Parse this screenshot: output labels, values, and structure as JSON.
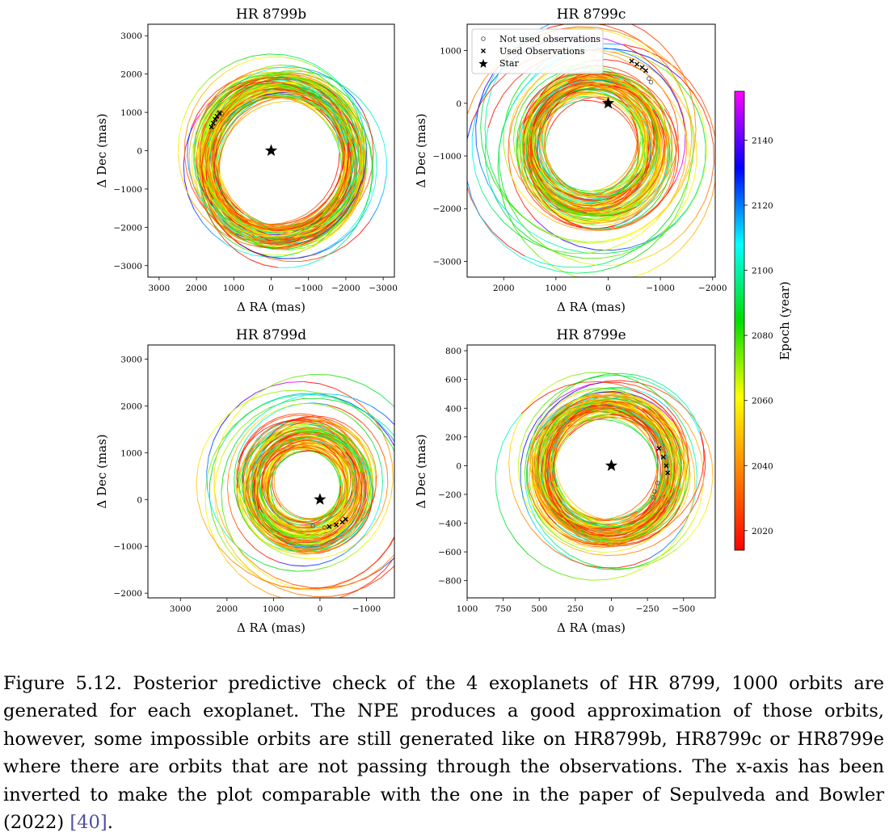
{
  "chart_data": [
    {
      "type": "line",
      "title": "HR 8799b",
      "xlabel": "Δ RA (mas)",
      "ylabel": "Δ Dec (mas)",
      "xlim": [
        3300,
        -3300
      ],
      "ylim": [
        -3300,
        3300
      ],
      "x_ticks": [
        3000,
        2000,
        1000,
        0,
        -1000,
        -2000,
        -3000
      ],
      "y_ticks": [
        3000,
        2000,
        1000,
        0,
        -1000,
        -2000,
        -3000
      ],
      "x_tick_labels": [
        "3000",
        "2000",
        "1000",
        "0",
        "−1000",
        "−2000",
        "−3000"
      ],
      "y_tick_labels": [
        "3000",
        "2000",
        "1000",
        "0",
        "−1000",
        "−2000",
        "−3000"
      ],
      "star": [
        0,
        0
      ],
      "orbit_center": [
        -250,
        -300
      ],
      "orbit_radius": [
        1850,
        2550
      ],
      "observations_used": [
        [
          1600,
          620
        ],
        [
          1550,
          720
        ],
        [
          1500,
          820
        ],
        [
          1450,
          900
        ],
        [
          1380,
          980
        ]
      ],
      "observations_not_used": [
        [
          1400,
          1000
        ],
        [
          1320,
          960
        ]
      ]
    },
    {
      "type": "line",
      "title": "HR 8799c",
      "xlabel": "Δ RA (mas)",
      "ylabel": "Δ Dec (mas)",
      "xlim": [
        2700,
        -2050
      ],
      "ylim": [
        -3300,
        1500
      ],
      "x_ticks": [
        2000,
        1000,
        0,
        -1000,
        -2000
      ],
      "y_ticks": [
        1000,
        0,
        -1000,
        -2000,
        -3000
      ],
      "x_tick_labels": [
        "2000",
        "1000",
        "0",
        "−1000",
        "−2000"
      ],
      "y_tick_labels": [
        "1000",
        "0",
        "−1000",
        "−2000",
        "−3000"
      ],
      "legend": [
        "Not used observations",
        "Used Observations",
        "Star"
      ],
      "legend_position": "top-left",
      "star": [
        0,
        0
      ],
      "orbit_center": [
        300,
        -800
      ],
      "orbit_radius": [
        1000,
        2400
      ],
      "observations_used": [
        [
          -450,
          800
        ],
        [
          -550,
          740
        ],
        [
          -650,
          680
        ],
        [
          -720,
          620
        ]
      ],
      "observations_not_used": [
        [
          -780,
          470
        ],
        [
          -820,
          400
        ]
      ]
    },
    {
      "type": "line",
      "title": "HR 8799d",
      "xlabel": "Δ RA (mas)",
      "ylabel": "Δ Dec (mas)",
      "xlim": [
        3700,
        -1600
      ],
      "ylim": [
        -2100,
        3300
      ],
      "x_ticks": [
        3000,
        2000,
        1000,
        0,
        -1000
      ],
      "y_ticks": [
        3000,
        2000,
        1000,
        0,
        -1000,
        -2000
      ],
      "x_tick_labels": [
        "3000",
        "2000",
        "1000",
        "0",
        "−1000"
      ],
      "y_tick_labels": [
        "3000",
        "2000",
        "1000",
        "0",
        "−1000",
        "−2000"
      ],
      "star": [
        0,
        0
      ],
      "orbit_center": [
        300,
        300
      ],
      "orbit_radius": [
        800,
        2500
      ],
      "observations_used": [
        [
          -200,
          -580
        ],
        [
          -350,
          -540
        ],
        [
          -480,
          -480
        ],
        [
          -550,
          -420
        ]
      ],
      "observations_not_used": [
        [
          150,
          -560
        ],
        [
          -100,
          -600
        ]
      ]
    },
    {
      "type": "line",
      "title": "HR 8799e",
      "xlabel": "Δ RA (mas)",
      "ylabel": "Δ Dec (mas)",
      "xlim": [
        1000,
        -720
      ],
      "ylim": [
        -920,
        840
      ],
      "x_ticks": [
        1000,
        750,
        500,
        250,
        0,
        -250,
        -500
      ],
      "y_ticks": [
        800,
        600,
        400,
        200,
        0,
        -200,
        -400,
        -600,
        -800
      ],
      "x_tick_labels": [
        "1000",
        "750",
        "500",
        "250",
        "0",
        "−250",
        "−500"
      ],
      "y_tick_labels": [
        "800",
        "600",
        "400",
        "200",
        "0",
        "−200",
        "−400",
        "−600",
        "−800"
      ],
      "star": [
        0,
        0
      ],
      "orbit_center": [
        30,
        -20
      ],
      "orbit_radius": [
        400,
        700
      ],
      "observations_used": [
        [
          -330,
          120
        ],
        [
          -360,
          60
        ],
        [
          -380,
          0
        ],
        [
          -390,
          -50
        ]
      ],
      "observations_not_used": [
        [
          -320,
          -120
        ],
        [
          -300,
          -180
        ],
        [
          -290,
          -220
        ]
      ]
    }
  ],
  "colorbar": {
    "label": "Epoch (year)",
    "range": [
      2014,
      2155
    ],
    "ticks": [
      2020,
      2040,
      2060,
      2080,
      2100,
      2120,
      2140
    ],
    "tick_labels": [
      "2020",
      "2040",
      "2060",
      "2080",
      "2100",
      "2120",
      "2140"
    ],
    "colormap": [
      "#ff0000",
      "#ff8000",
      "#ffff00",
      "#00dd00",
      "#00ffff",
      "#0000ff",
      "#ff00ff"
    ]
  },
  "caption": {
    "text": "Figure 5.12. Posterior predictive check of the 4 exoplanets of HR 8799, 1000 orbits are generated for each exoplanet. The NPE produces a good approximation of those orbits, however, some impossible orbits are still generated like on HR8799b, HR8799c or HR8799e where there are orbits that are not passing through the observations. The x-axis has been inverted to make the plot comparable with the one in the paper of Sepulveda and Bowler (2022) ",
    "ref": "[40]",
    "end": "."
  }
}
